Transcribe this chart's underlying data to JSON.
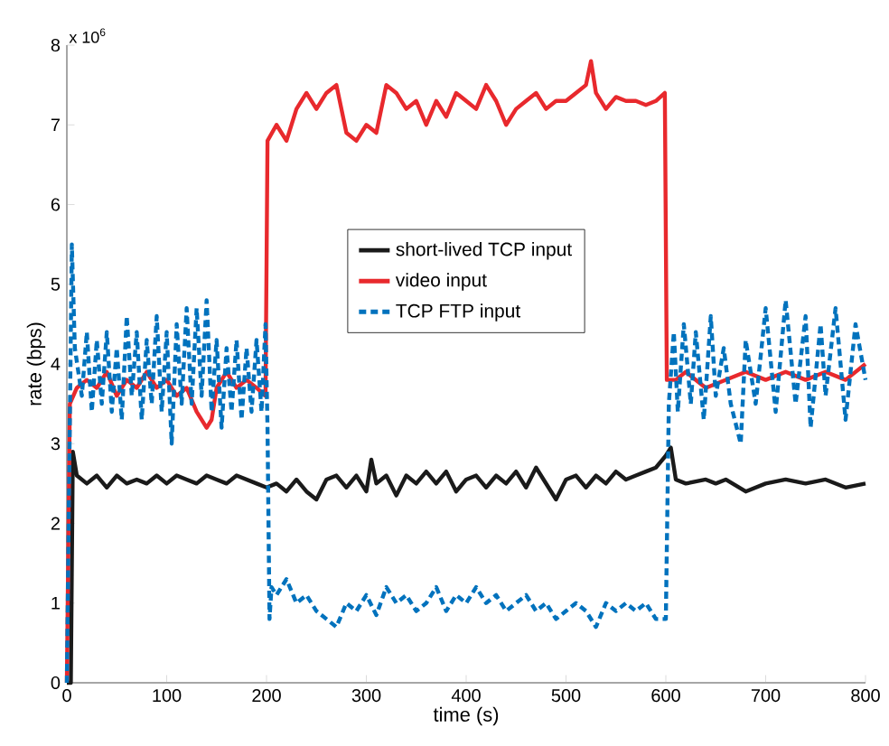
{
  "chart_data": {
    "type": "line",
    "xlabel": "time (s)",
    "ylabel": "rate (bps)",
    "annotations": [
      "x 10$^{6}$"
    ],
    "xlim": [
      0,
      800
    ],
    "xticks": [
      0,
      100,
      200,
      300,
      400,
      500,
      600,
      700,
      800
    ],
    "ylim": [
      0,
      8
    ],
    "yticks": [
      0,
      1,
      2,
      3,
      4,
      5,
      6,
      7,
      8
    ],
    "legend": "center",
    "grid": false,
    "marker": "none",
    "series": [
      {
        "name": "short-lived TCP input",
        "color": "#1a1a1a",
        "line_style": "solid",
        "x": [
          0,
          4,
          6,
          10,
          20,
          30,
          40,
          50,
          60,
          70,
          80,
          90,
          100,
          110,
          120,
          130,
          140,
          150,
          160,
          170,
          180,
          190,
          200,
          210,
          220,
          230,
          240,
          250,
          260,
          270,
          280,
          290,
          300,
          305,
          310,
          320,
          330,
          340,
          350,
          360,
          370,
          380,
          390,
          400,
          410,
          420,
          430,
          440,
          450,
          460,
          470,
          480,
          490,
          500,
          510,
          520,
          530,
          540,
          550,
          560,
          570,
          580,
          590,
          600,
          605,
          610,
          620,
          640,
          650,
          660,
          680,
          700,
          720,
          740,
          760,
          780,
          800
        ],
        "values": [
          0,
          0,
          2.9,
          2.6,
          2.5,
          2.6,
          2.45,
          2.6,
          2.5,
          2.55,
          2.5,
          2.6,
          2.5,
          2.6,
          2.55,
          2.5,
          2.6,
          2.55,
          2.5,
          2.6,
          2.55,
          2.5,
          2.45,
          2.5,
          2.4,
          2.55,
          2.4,
          2.3,
          2.55,
          2.6,
          2.45,
          2.6,
          2.4,
          2.8,
          2.5,
          2.6,
          2.35,
          2.6,
          2.5,
          2.65,
          2.5,
          2.65,
          2.4,
          2.55,
          2.6,
          2.45,
          2.6,
          2.5,
          2.65,
          2.45,
          2.7,
          2.5,
          2.3,
          2.55,
          2.6,
          2.45,
          2.6,
          2.5,
          2.65,
          2.55,
          2.6,
          2.65,
          2.7,
          2.85,
          2.95,
          2.55,
          2.5,
          2.55,
          2.5,
          2.55,
          2.4,
          2.5,
          2.55,
          2.5,
          2.55,
          2.45,
          2.5
        ]
      },
      {
        "name": "video input",
        "color": "#e8292d",
        "line_style": "solid",
        "x": [
          0,
          3,
          10,
          20,
          30,
          40,
          50,
          60,
          70,
          80,
          90,
          100,
          110,
          120,
          130,
          140,
          145,
          150,
          160,
          170,
          180,
          190,
          199,
          201,
          210,
          220,
          230,
          240,
          250,
          260,
          270,
          280,
          290,
          300,
          310,
          320,
          330,
          340,
          350,
          360,
          370,
          380,
          390,
          400,
          410,
          420,
          430,
          440,
          450,
          460,
          470,
          480,
          490,
          500,
          510,
          520,
          525,
          530,
          540,
          550,
          560,
          570,
          580,
          590,
          599,
          601,
          610,
          620,
          640,
          660,
          680,
          700,
          720,
          740,
          760,
          780,
          800
        ],
        "values": [
          0,
          3.5,
          3.7,
          3.8,
          3.7,
          3.9,
          3.6,
          3.8,
          3.7,
          3.9,
          3.7,
          3.8,
          3.6,
          3.7,
          3.4,
          3.2,
          3.3,
          3.7,
          3.9,
          3.7,
          3.8,
          3.7,
          3.6,
          6.8,
          7.0,
          6.8,
          7.2,
          7.4,
          7.2,
          7.4,
          7.5,
          6.9,
          6.8,
          7.0,
          6.9,
          7.5,
          7.4,
          7.2,
          7.3,
          7.0,
          7.3,
          7.1,
          7.4,
          7.3,
          7.2,
          7.5,
          7.3,
          7.0,
          7.2,
          7.3,
          7.4,
          7.2,
          7.3,
          7.3,
          7.4,
          7.5,
          7.8,
          7.4,
          7.2,
          7.35,
          7.3,
          7.3,
          7.25,
          7.3,
          7.4,
          3.8,
          3.8,
          3.9,
          3.7,
          3.8,
          3.9,
          3.8,
          3.9,
          3.8,
          3.9,
          3.8,
          4.0
        ]
      },
      {
        "name": "TCP FTP input",
        "color": "#0072bd",
        "line_style": "dashed",
        "x": [
          0,
          3,
          5,
          8,
          15,
          20,
          25,
          30,
          35,
          40,
          45,
          50,
          55,
          60,
          65,
          70,
          75,
          80,
          85,
          90,
          95,
          100,
          105,
          110,
          115,
          120,
          125,
          130,
          135,
          140,
          145,
          150,
          155,
          160,
          165,
          170,
          175,
          180,
          185,
          190,
          195,
          199,
          201,
          203,
          205,
          210,
          220,
          230,
          240,
          250,
          260,
          270,
          280,
          290,
          300,
          310,
          320,
          330,
          340,
          350,
          360,
          370,
          380,
          390,
          400,
          410,
          420,
          430,
          440,
          450,
          460,
          470,
          480,
          490,
          500,
          510,
          520,
          530,
          540,
          550,
          560,
          570,
          580,
          590,
          600,
          603,
          608,
          612,
          618,
          625,
          630,
          638,
          645,
          650,
          658,
          665,
          675,
          680,
          690,
          700,
          710,
          720,
          730,
          740,
          745,
          755,
          760,
          770,
          780,
          790,
          800
        ],
        "values": [
          0,
          3.3,
          5.5,
          4.2,
          3.6,
          4.4,
          3.4,
          4.3,
          3.5,
          4.4,
          3.4,
          4.2,
          3.3,
          4.6,
          3.6,
          4.4,
          3.3,
          4.3,
          3.5,
          4.6,
          3.4,
          4.4,
          3.0,
          4.5,
          3.5,
          4.7,
          3.5,
          4.7,
          3.6,
          4.8,
          3.4,
          4.3,
          3.2,
          4.2,
          3.4,
          4.3,
          3.3,
          4.2,
          3.4,
          4.3,
          3.4,
          4.5,
          3.2,
          0.8,
          1.2,
          1.1,
          1.3,
          1.0,
          1.1,
          0.9,
          0.8,
          0.7,
          1.0,
          0.9,
          1.1,
          0.85,
          1.2,
          1.0,
          1.1,
          0.9,
          1.0,
          1.2,
          0.9,
          1.1,
          1.0,
          1.2,
          1.0,
          1.1,
          0.9,
          1.0,
          1.1,
          0.9,
          1.0,
          0.8,
          0.9,
          1.0,
          0.9,
          0.7,
          1.0,
          0.9,
          1.0,
          0.9,
          1.0,
          0.8,
          0.8,
          3.5,
          4.4,
          3.4,
          4.5,
          3.5,
          4.4,
          3.3,
          4.6,
          3.6,
          4.2,
          3.5,
          3.0,
          4.3,
          3.5,
          4.7,
          3.4,
          4.8,
          3.5,
          4.6,
          3.2,
          4.5,
          3.6,
          4.7,
          3.3,
          4.5,
          3.8
        ]
      }
    ]
  }
}
